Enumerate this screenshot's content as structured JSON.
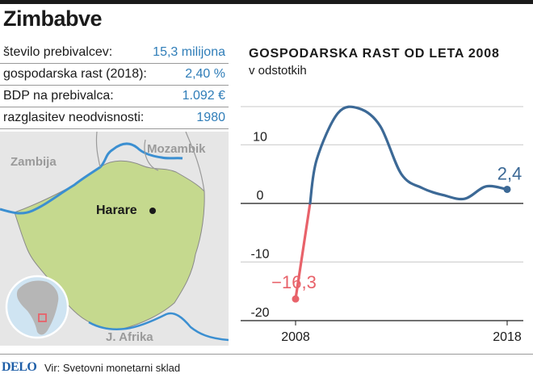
{
  "title": "Zimbabve",
  "facts": [
    {
      "label": "število prebivalcev:",
      "value": "15,3 milijona"
    },
    {
      "label": "gospodarska rast (2018):",
      "value": "2,40 %"
    },
    {
      "label": "BDP na prebivalca:",
      "value": "1.092 €"
    },
    {
      "label": "razglasitev neodvisnosti:",
      "value": "1980"
    }
  ],
  "map": {
    "labels": {
      "zambia": "Zambija",
      "mozambique": "Mozambik",
      "capital": "Harare",
      "south_africa": "J. Afrika"
    },
    "colors": {
      "country": "#c5d98e",
      "neighbors": "#e6e6e6",
      "rivers": "#3b8fd1",
      "globe_water": "#cfe4f2"
    }
  },
  "chart_data": {
    "type": "line",
    "title": "GOSPODARSKA RAST OD LETA 2008",
    "subtitle": "v odstotkih",
    "x": [
      2008,
      2009,
      2010,
      2011,
      2012,
      2013,
      2014,
      2015,
      2016,
      2017,
      2018
    ],
    "series": [
      {
        "values": [
          -16.3,
          7.5,
          15.4,
          16.2,
          13.2,
          5.0,
          2.6,
          1.4,
          0.8,
          2.9,
          2.4
        ]
      }
    ],
    "highlight_colors": {
      "negative": "#e8626a",
      "positive": "#3c6996"
    },
    "annotations": [
      {
        "x": 2008,
        "label": "−16,3"
      },
      {
        "x": 2018,
        "label": "2,4"
      }
    ],
    "y_ticks": [
      {
        "v": 10,
        "label": "10"
      },
      {
        "v": 0,
        "label": "0"
      },
      {
        "v": -10,
        "label": "-10"
      },
      {
        "v": -20,
        "label": "-20"
      }
    ],
    "x_ticks": [
      {
        "v": 2008,
        "label": "2008"
      },
      {
        "v": 2018,
        "label": "2018"
      }
    ],
    "ylim": [
      -20,
      19
    ],
    "xlim": [
      2008,
      2018
    ],
    "grid": true
  },
  "footer": {
    "logo": "DELO",
    "source": "Vir: Svetovni monetarni sklad"
  }
}
